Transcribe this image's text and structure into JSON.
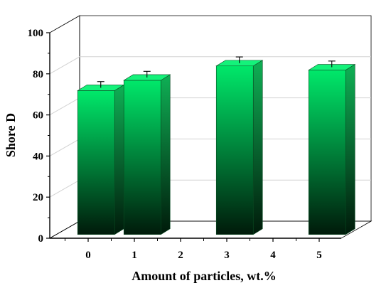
{
  "chart_data": {
    "type": "bar",
    "title": "",
    "xlabel": "Amount of particles, wt.%",
    "ylabel": "Shore D",
    "x_ticks": [
      "0",
      "1",
      "2",
      "3",
      "4",
      "5"
    ],
    "y_ticks": [
      "0",
      "20",
      "40",
      "60",
      "80",
      "100"
    ],
    "ylim": [
      0,
      100
    ],
    "categories": [
      "0",
      "1",
      "3",
      "5"
    ],
    "category_positions": [
      0,
      1,
      3,
      5
    ],
    "values": [
      70,
      75,
      82,
      80
    ],
    "errors": [
      3,
      3,
      3,
      3
    ],
    "grid": true,
    "three_d": true,
    "colors": {
      "bar_top": "#00e86a",
      "bar_bottom": "#001a0a",
      "bar_top_face": "#14f27a",
      "bar_side": "#0c9a48",
      "grid": "#d2d2d2",
      "axis": "#000000"
    }
  }
}
